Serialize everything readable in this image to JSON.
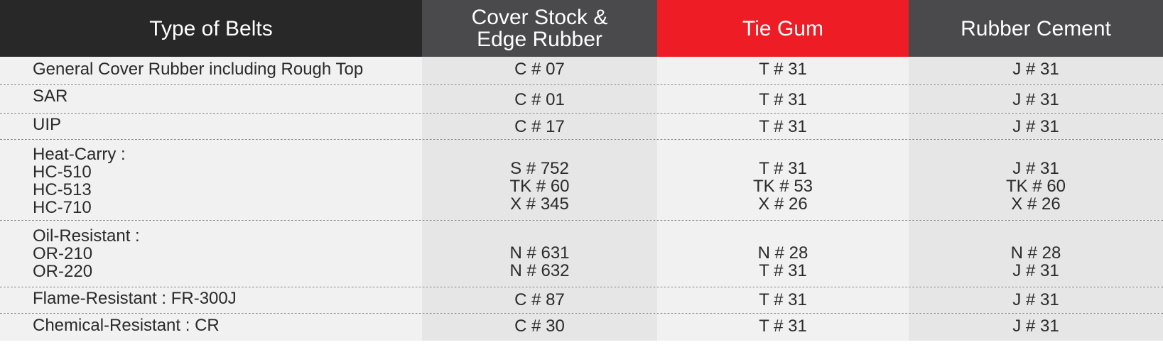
{
  "table": {
    "headers": [
      "Type of Belts",
      "Cover Stock &\nEdge Rubber",
      "Tie Gum",
      "Rubber Cement"
    ],
    "rows": [
      {
        "type": "General Cover Rubber including Rough Top",
        "cover": "C # 07",
        "tie": "T # 31",
        "cement": "J # 31"
      },
      {
        "type": "SAR",
        "cover": "C # 01",
        "tie": "T # 31",
        "cement": "J # 31"
      },
      {
        "type": "UIP",
        "cover": "C # 17",
        "tie": "T # 31",
        "cement": "J # 31"
      },
      {
        "type": "Heat-Carry :\nHC-510\nHC-513\nHC-710",
        "cover": "S # 752\nTK # 60\nX # 345",
        "tie": "T # 31\nTK # 53\nX # 26",
        "cement": "J # 31\nTK # 60\nX # 26"
      },
      {
        "type": "Oil-Resistant :\nOR-210\nOR-220",
        "cover": "N # 631\nN # 632",
        "tie": "N # 28\nT # 31",
        "cement": "N # 28\nJ # 31"
      },
      {
        "type": "Flame-Resistant : FR-300J",
        "cover": "C # 87",
        "tie": "T # 31",
        "cement": "J # 31"
      },
      {
        "type": "Chemical-Resistant : CR",
        "cover": "C # 30",
        "tie": "T # 31",
        "cement": "J # 31"
      }
    ]
  },
  "colors": {
    "header_dark": "#282828",
    "header_gray": "#4a4a4c",
    "header_red": "#ee1c24",
    "row_light": "#f1f1f2",
    "row_shaded": "#e6e6e6"
  }
}
